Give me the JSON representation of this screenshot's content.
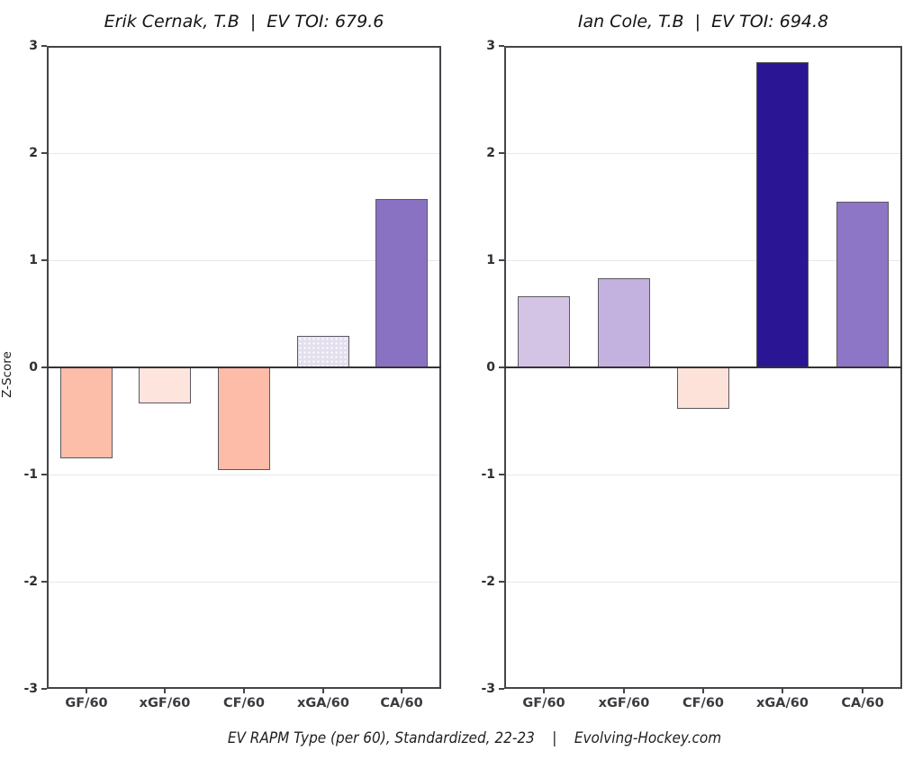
{
  "figure": {
    "caption": "EV RAPM Type (per 60), Standardized, 22-23    |    Evolving-Hockey.com",
    "y_axis_label": "Z-Score"
  },
  "chart_data": [
    {
      "type": "bar",
      "title": "Erik Cernak, T.B  |  EV TOI: 679.6",
      "player": "Erik Cernak",
      "team": "T.B",
      "ev_toi": 679.6,
      "categories": [
        "GF/60",
        "xGF/60",
        "CF/60",
        "xGA/60",
        "CA/60"
      ],
      "values": [
        -0.85,
        -0.34,
        -0.96,
        0.29,
        1.57
      ],
      "bar_colors": [
        "#fcbda9",
        "#fde5dd",
        "#fdbca8",
        "#e3dfee",
        "#8a72c3"
      ],
      "bar_patterns": [
        null,
        null,
        null,
        "stipple",
        null
      ],
      "xlabel": "",
      "ylabel": "Z-Score",
      "ylim": [
        -3,
        3
      ],
      "yticks": [
        3,
        2,
        1,
        0,
        -1,
        -2,
        -3
      ],
      "grid": true,
      "legend": false
    },
    {
      "type": "bar",
      "title": "Ian Cole, T.B  |  EV TOI: 694.8",
      "player": "Ian Cole",
      "team": "T.B",
      "ev_toi": 694.8,
      "categories": [
        "GF/60",
        "xGF/60",
        "CF/60",
        "xGA/60",
        "CA/60"
      ],
      "values": [
        0.66,
        0.83,
        -0.39,
        2.85,
        1.55
      ],
      "bar_colors": [
        "#d3c4e6",
        "#c3b1df",
        "#fce2d8",
        "#2a1695",
        "#8d76c5"
      ],
      "bar_patterns": [
        null,
        null,
        null,
        null,
        null
      ],
      "xlabel": "",
      "ylabel": "",
      "ylim": [
        -3,
        3
      ],
      "yticks": [
        3,
        2,
        1,
        0,
        -1,
        -2,
        -3
      ],
      "grid": true,
      "legend": false
    }
  ]
}
